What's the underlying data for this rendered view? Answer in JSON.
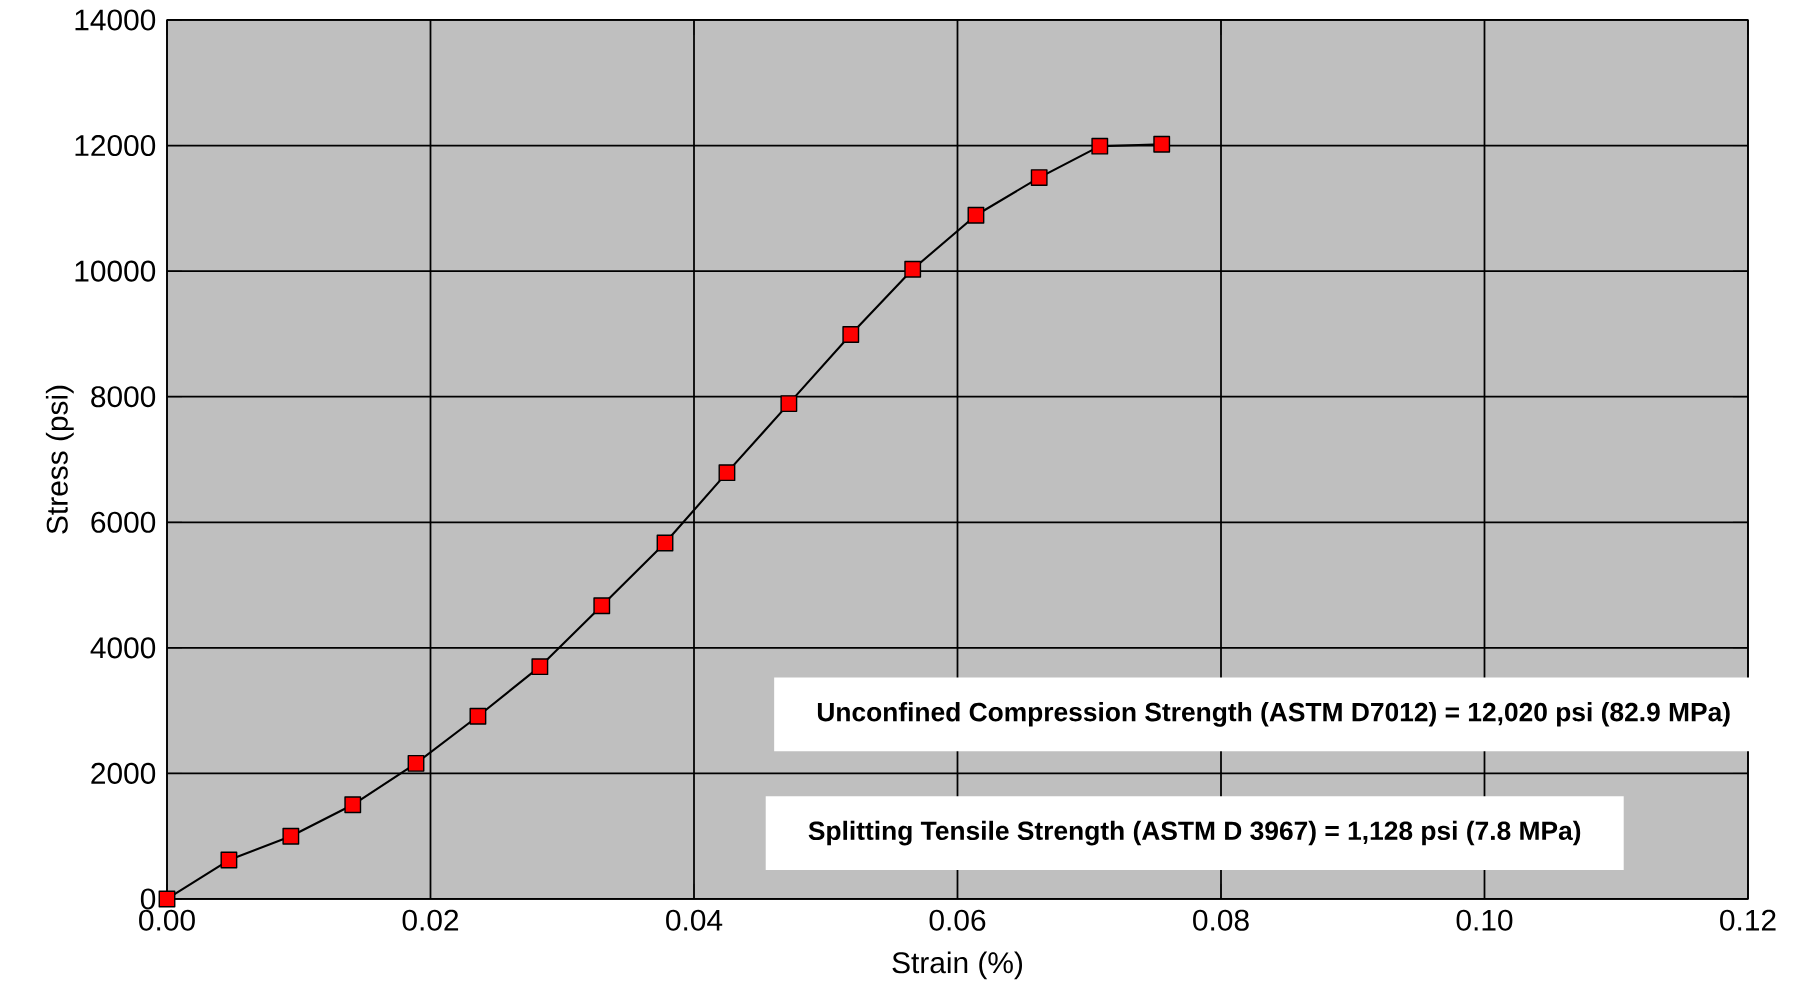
{
  "chart_data": {
    "type": "line",
    "xlabel": "Strain (%)",
    "ylabel": "Stress (psi)",
    "x": [
      0,
      0.0047,
      0.0094,
      0.0141,
      0.0189,
      0.0236,
      0.0283,
      0.033,
      0.0378,
      0.0425,
      0.0472,
      0.0519,
      0.0566,
      0.0614,
      0.0662,
      0.0708,
      0.0755
    ],
    "series": [
      {
        "color": "#ff0000",
        "values": [
          0,
          620,
          1000,
          1500,
          2160,
          2910,
          3700,
          4670,
          5670,
          6790,
          7890,
          8990,
          10030,
          10890,
          11490,
          11990,
          12020
        ]
      }
    ],
    "xlim": [
      0,
      0.12
    ],
    "ylim": [
      0,
      14000
    ],
    "xticks": [
      {
        "value": 0,
        "label": "0.00"
      },
      {
        "value": 0.02,
        "label": "0.02"
      },
      {
        "value": 0.04,
        "label": "0.04"
      },
      {
        "value": 0.06,
        "label": "0.06"
      },
      {
        "value": 0.08,
        "label": "0.08"
      },
      {
        "value": 0.1,
        "label": "0.10"
      },
      {
        "value": 0.12,
        "label": "0.12"
      }
    ],
    "yticks": [
      0,
      2000,
      4000,
      6000,
      8000,
      10000,
      12000,
      14000
    ],
    "grid": true,
    "marker": "square",
    "line_style": "solid",
    "annotations": [
      "Unconfined Compression Strength (ASTM D7012) = 12,020 psi (82.9 MPa)",
      "Splitting Tensile Strength (ASTM D 3967) = 1,128 psi (7.8 MPa)"
    ]
  }
}
